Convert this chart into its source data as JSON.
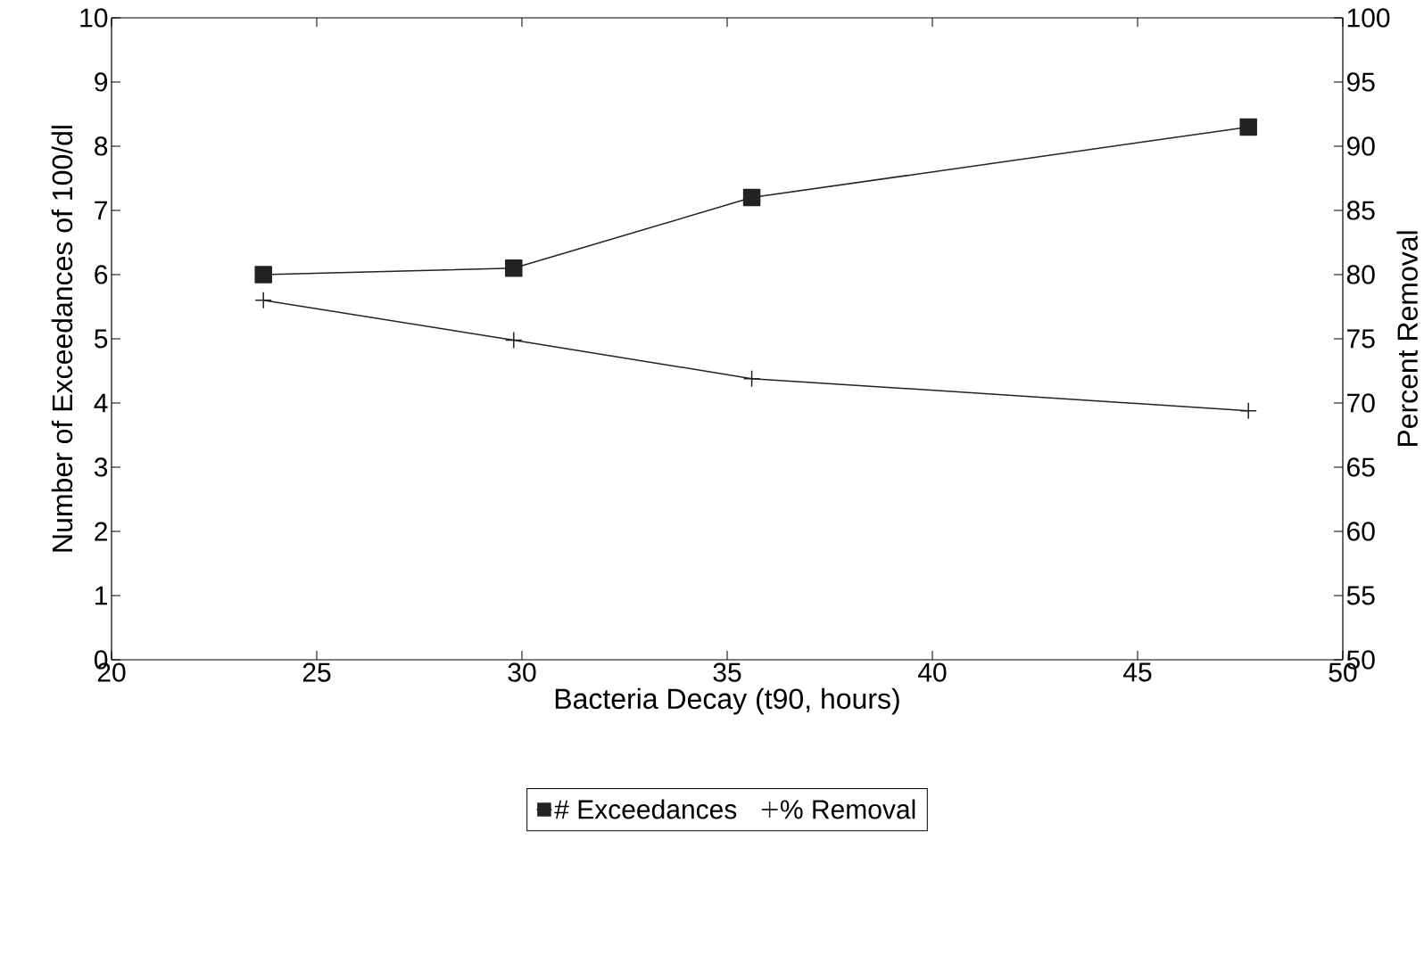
{
  "chart_data": {
    "type": "line",
    "xlabel": "Bacteria Decay (t90, hours)",
    "ylabel": "Number of Exceedances of 100/dl",
    "y2label": "Percent Removal",
    "x": [
      23.7,
      29.8,
      35.6,
      47.7
    ],
    "series": [
      {
        "name": "# Exceedances",
        "color": "#222222",
        "marker": "square",
        "axis": "y",
        "values": [
          6.0,
          6.1,
          7.2,
          8.3
        ]
      },
      {
        "name": "% Removal",
        "color": "#222222",
        "marker": "cross",
        "axis": "y2",
        "values": [
          78,
          74.9,
          71.9,
          69.4
        ]
      }
    ],
    "xlim": [
      20,
      50
    ],
    "xticks": [
      20,
      25,
      30,
      35,
      40,
      45,
      50
    ],
    "ylim": [
      0,
      10
    ],
    "yticks": [
      0,
      1,
      2,
      3,
      4,
      5,
      6,
      7,
      8,
      9,
      10
    ],
    "y2lim": [
      50,
      100
    ],
    "y2ticks": [
      50,
      55,
      60,
      65,
      70,
      75,
      80,
      85,
      90,
      95,
      100
    ],
    "legend": "bottom",
    "grid": false,
    "line_style": "solid"
  }
}
